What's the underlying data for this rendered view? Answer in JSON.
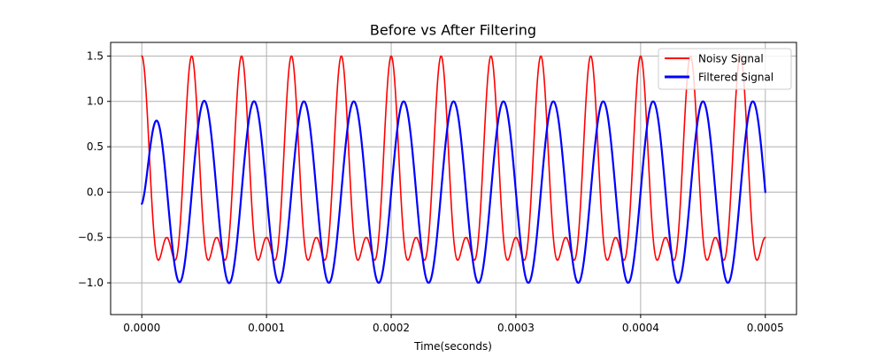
{
  "chart_data": {
    "type": "line",
    "title": "Before vs After Filtering",
    "xlabel": "Time(seconds)",
    "ylabel": "",
    "xlim": [
      -2.5e-05,
      0.000525
    ],
    "ylim": [
      -1.35,
      1.65
    ],
    "grid": true,
    "legend_position": "top-right",
    "x_ticks": [
      0,
      0.0001,
      0.0002,
      0.0003,
      0.0004,
      0.0005
    ],
    "x_tick_labels": [
      "0.0000",
      "0.0001",
      "0.0002",
      "0.0003",
      "0.0004",
      "0.0005"
    ],
    "y_ticks": [
      -1.0,
      -0.5,
      0.0,
      0.5,
      1.0,
      1.5
    ],
    "y_tick_labels": [
      "−1.0",
      "−0.5",
      "0.0",
      "0.5",
      "1.0",
      "1.5"
    ],
    "series": [
      {
        "name": "Noisy Signal",
        "color": "#ff0000",
        "line_width": "thin",
        "formula": "cos(2*pi*25000*t) + 0.5*cos(2*pi*50000*t)",
        "x_range": [
          0,
          0.0005
        ],
        "sample_count": 2001
      },
      {
        "name": "Filtered Signal",
        "color": "#0000ff",
        "line_width": "thick",
        "formula": "filter response approximating sin(2*pi*25000*t) with startup transient",
        "x_range": [
          0,
          0.0005
        ],
        "sample_count": 2001
      }
    ]
  }
}
